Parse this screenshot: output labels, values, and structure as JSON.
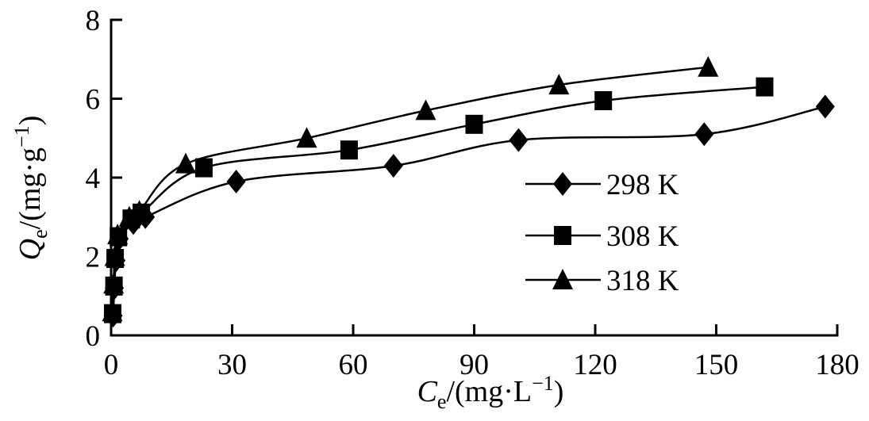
{
  "figure": {
    "background_color": "#ffffff",
    "ink_color": "#000000"
  },
  "chart_data": {
    "type": "line",
    "title": "",
    "grid": false,
    "legend_position": "right-middle",
    "xlim": [
      0,
      180
    ],
    "ylim": [
      0,
      8
    ],
    "x_ticks": [
      0,
      30,
      60,
      90,
      120,
      150,
      180
    ],
    "y_ticks": [
      0,
      2,
      4,
      6,
      8
    ],
    "xlabel": {
      "var": "C",
      "sub": "e",
      "mid": "/(mg·L",
      "sup": "−1",
      "end": ")"
    },
    "ylabel": {
      "var": "Q",
      "sub": "e",
      "mid": "/(mg·g",
      "sup": "−1",
      "end": ")"
    },
    "series": [
      {
        "name": "298 K",
        "marker": "diamond",
        "color": "#000000",
        "points": [
          [
            0.5,
            0.5
          ],
          [
            0.8,
            1.2
          ],
          [
            1.2,
            1.9
          ],
          [
            2.0,
            2.45
          ],
          [
            5.5,
            2.85
          ],
          [
            8.5,
            3.0
          ],
          [
            31,
            3.9
          ],
          [
            70,
            4.3
          ],
          [
            101,
            4.95
          ],
          [
            147,
            5.1
          ],
          [
            177,
            5.8
          ]
        ]
      },
      {
        "name": "308 K",
        "marker": "square",
        "color": "#000000",
        "points": [
          [
            0.4,
            0.55
          ],
          [
            0.7,
            1.25
          ],
          [
            1.0,
            1.95
          ],
          [
            1.8,
            2.5
          ],
          [
            5.0,
            2.95
          ],
          [
            7.5,
            3.1
          ],
          [
            23,
            4.25
          ],
          [
            59,
            4.7
          ],
          [
            90,
            5.35
          ],
          [
            122,
            5.95
          ],
          [
            162,
            6.3
          ]
        ]
      },
      {
        "name": "318 K",
        "marker": "triangle",
        "color": "#000000",
        "points": [
          [
            0.3,
            0.6
          ],
          [
            0.6,
            1.3
          ],
          [
            0.9,
            2.0
          ],
          [
            1.6,
            2.55
          ],
          [
            4.5,
            3.0
          ],
          [
            7.0,
            3.15
          ],
          [
            18.5,
            4.35
          ],
          [
            48.5,
            5.0
          ],
          [
            78,
            5.7
          ],
          [
            111,
            6.35
          ],
          [
            148,
            6.8
          ]
        ]
      }
    ]
  }
}
